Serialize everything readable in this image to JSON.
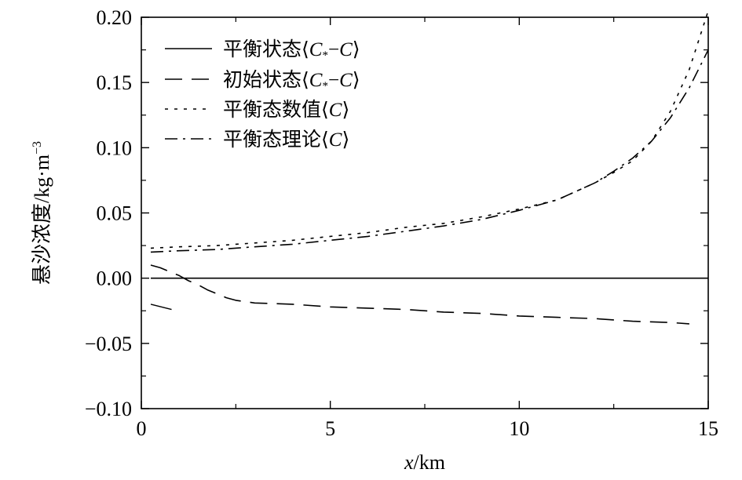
{
  "chart_data": {
    "type": "line",
    "xlabel_italic": "x",
    "xlabel_unit": "/km",
    "ylabel_main": "悬沙浓度/kg·m",
    "ylabel_sup": "−3",
    "xlim": [
      0,
      15
    ],
    "ylim": [
      -0.1,
      0.2
    ],
    "x_ticks": [
      0,
      5,
      10,
      15
    ],
    "x_tick_labels": [
      "0",
      "5",
      "10",
      "15"
    ],
    "y_ticks": [
      -0.1,
      -0.05,
      0.0,
      0.05,
      0.1,
      0.15,
      0.2
    ],
    "y_tick_labels": [
      "−0.10",
      "−0.05",
      "0.00",
      "0.05",
      "0.10",
      "0.15",
      "0.20"
    ],
    "grid": false,
    "legend_position": "top-left",
    "series": [
      {
        "name": "平衡状态⟨C*−C⟩",
        "legend_prefix": "平衡状态⟨",
        "legend_var1": "C",
        "legend_sub": "*",
        "legend_mid": "−",
        "legend_var2": "C",
        "legend_suffix": "⟩",
        "style": "solid",
        "x": [
          0.25,
          15
        ],
        "y": [
          0.0,
          0.0
        ]
      },
      {
        "name": "初始状态⟨C*−C⟩",
        "legend_prefix": "初始状态⟨",
        "legend_var1": "C",
        "legend_sub": "*",
        "legend_mid": "−",
        "legend_var2": "C",
        "legend_suffix": "⟩",
        "style": "dashed",
        "x": [
          0.25,
          0.5,
          0.75,
          1.0,
          1.25,
          1.5,
          1.75,
          2.0,
          2.25,
          2.5,
          3.0,
          4.0,
          5.0,
          6.0,
          7.0,
          8.0,
          9.0,
          10.0,
          11.0,
          12.0,
          13.0,
          14.0,
          14.5
        ],
        "y": [
          0.01,
          0.008,
          0.005,
          0.002,
          -0.002,
          -0.005,
          -0.009,
          -0.012,
          -0.015,
          -0.017,
          -0.019,
          -0.02,
          -0.022,
          -0.023,
          -0.024,
          -0.026,
          -0.027,
          -0.029,
          -0.03,
          -0.031,
          -0.033,
          -0.034,
          -0.035
        ]
      },
      {
        "name": "平衡态数值⟨C⟩",
        "legend_prefix": "平衡态数值⟨",
        "legend_var1": "C",
        "legend_suffix": "⟩",
        "style": "dotted",
        "x": [
          0.25,
          1,
          2,
          3,
          4,
          5,
          6,
          7,
          8,
          9,
          10,
          11,
          12,
          12.5,
          13,
          13.5,
          14,
          14.5,
          15
        ],
        "y": [
          0.023,
          0.024,
          0.025,
          0.027,
          0.029,
          0.032,
          0.035,
          0.039,
          0.042,
          0.047,
          0.053,
          0.06,
          0.073,
          0.081,
          0.09,
          0.105,
          0.128,
          0.16,
          0.205
        ]
      },
      {
        "name": "平衡态理论⟨C⟩",
        "legend_prefix": "平衡态理论⟨",
        "legend_var1": "C",
        "legend_suffix": "⟩",
        "style": "dashdot",
        "x": [
          0.25,
          1,
          2,
          3,
          4,
          5,
          6,
          7,
          8,
          9,
          10,
          11,
          12,
          12.5,
          13,
          13.5,
          14,
          14.5,
          15
        ],
        "y": [
          0.02,
          0.021,
          0.022,
          0.024,
          0.026,
          0.029,
          0.032,
          0.036,
          0.04,
          0.045,
          0.052,
          0.06,
          0.073,
          0.082,
          0.092,
          0.105,
          0.123,
          0.146,
          0.175
        ]
      }
    ],
    "annotation_segment": {
      "x": [
        0.25,
        0.8
      ],
      "y": [
        -0.02,
        -0.024
      ]
    }
  }
}
